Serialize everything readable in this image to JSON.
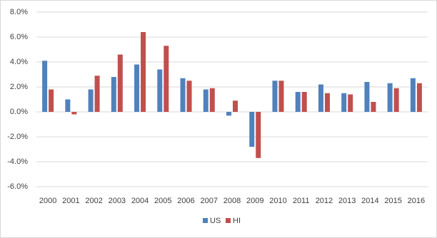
{
  "chart_data": {
    "type": "bar",
    "categories": [
      "2000",
      "2001",
      "2002",
      "2003",
      "2004",
      "2005",
      "2006",
      "2007",
      "2008",
      "2009",
      "2010",
      "2011",
      "2012",
      "2013",
      "2014",
      "2015",
      "2016"
    ],
    "series": [
      {
        "name": "US",
        "color": "#4f81bd",
        "values": [
          4.1,
          1.0,
          1.8,
          2.8,
          3.8,
          3.4,
          2.7,
          1.8,
          -0.3,
          -2.8,
          2.5,
          1.6,
          2.2,
          1.5,
          2.4,
          2.3,
          2.7
        ]
      },
      {
        "name": "HI",
        "color": "#c0504d",
        "values": [
          1.8,
          -0.2,
          2.9,
          4.6,
          6.4,
          5.3,
          2.5,
          1.9,
          0.9,
          -3.7,
          2.5,
          1.6,
          1.5,
          1.4,
          0.8,
          1.9,
          2.3
        ]
      }
    ],
    "ylim": [
      -6,
      8
    ],
    "yticks": [
      {
        "value": -6,
        "label": "-6.0%"
      },
      {
        "value": -4,
        "label": "-4.0%"
      },
      {
        "value": -2,
        "label": "-2.0%"
      },
      {
        "value": 0,
        "label": "0.0%"
      },
      {
        "value": 2,
        "label": "2.0%"
      },
      {
        "value": 4,
        "label": "4.0%"
      },
      {
        "value": 6,
        "label": "6.0%"
      },
      {
        "value": 8,
        "label": "8.0%"
      }
    ],
    "grid": true,
    "legend": "bottom"
  }
}
